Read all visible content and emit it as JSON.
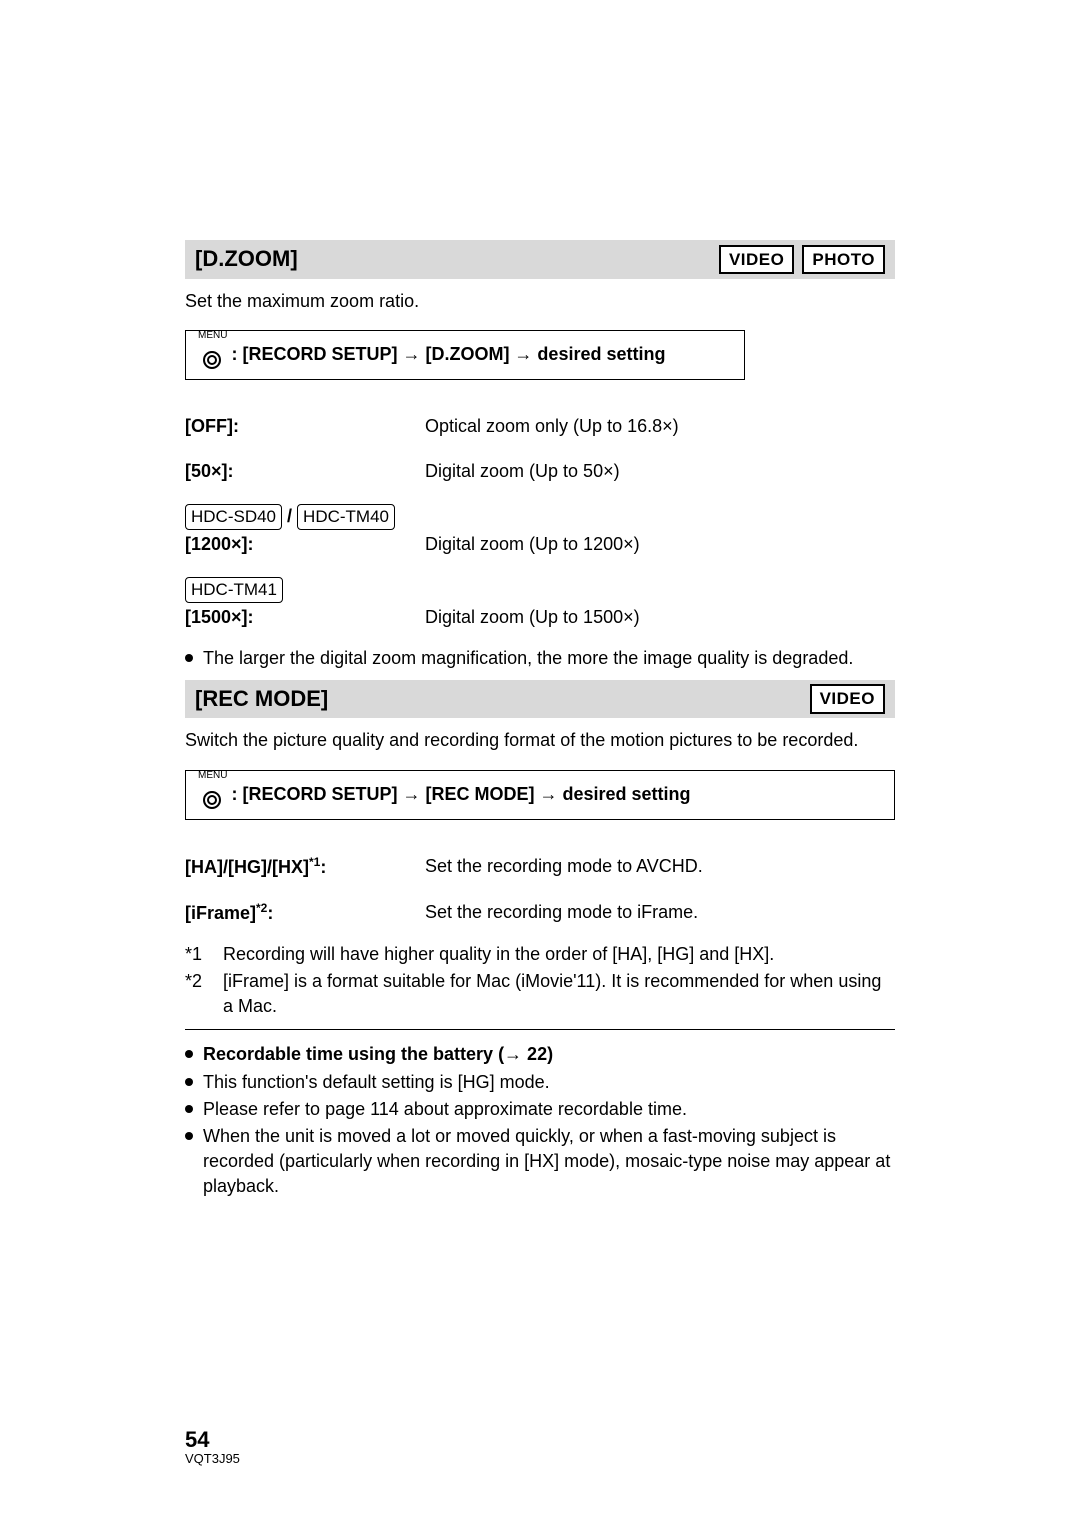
{
  "dzoom": {
    "title": "[D.ZOOM]",
    "badges": [
      "VIDEO",
      "PHOTO"
    ],
    "intro": "Set the maximum zoom ratio.",
    "menu_word": "MENU",
    "menu_path": ": [RECORD SETUP] → [D.ZOOM] → desired setting",
    "options": {
      "off": {
        "label": "[OFF]:",
        "desc": "Optical zoom only (Up to 16.8×)"
      },
      "x50": {
        "label": "[50×]:",
        "desc": "Digital zoom (Up to 50×)"
      },
      "x1200": {
        "models": [
          "HDC-SD40",
          "HDC-TM40"
        ],
        "label": "[1200×]:",
        "desc": "Digital zoom (Up to 1200×)"
      },
      "x1500": {
        "models": [
          "HDC-TM41"
        ],
        "label": "[1500×]:",
        "desc": "Digital zoom (Up to 1500×)"
      }
    },
    "note": "The larger the digital zoom magnification, the more the image quality is degraded."
  },
  "recmode": {
    "title": "[REC MODE]",
    "badges": [
      "VIDEO"
    ],
    "intro": "Switch the picture quality and recording format of the motion pictures to be recorded.",
    "menu_word": "MENU",
    "menu_path": ": [RECORD SETUP] → [REC MODE] → desired setting",
    "options": {
      "avchd": {
        "label_html": "[HA]/[HG]/[HX]",
        "sup": "*1",
        "colon": ":",
        "desc": "Set the recording mode to AVCHD."
      },
      "iframe": {
        "label_html": "[iFrame]",
        "sup": "*2",
        "colon": ":",
        "desc": "Set the recording mode to iFrame."
      }
    },
    "footnotes": {
      "f1": {
        "num": "*1",
        "text": "Recording will have higher quality in the order of [HA], [HG] and [HX]."
      },
      "f2": {
        "num": "*2",
        "text": "[iFrame] is a format suitable for Mac (iMovie'11). It is recommended for when using a Mac."
      }
    },
    "bullets": {
      "b1": "Recordable time using the battery (→ 22)",
      "b2": "This function's default setting is [HG] mode.",
      "b3": "Please refer to page 114 about approximate recordable time.",
      "b4": "When the unit is moved a lot or moved quickly, or when a fast-moving subject is recorded (particularly when recording in [HX] mode), mosaic-type noise may appear at playback."
    }
  },
  "footer": {
    "page": "54",
    "doc_id": "VQT3J95"
  }
}
